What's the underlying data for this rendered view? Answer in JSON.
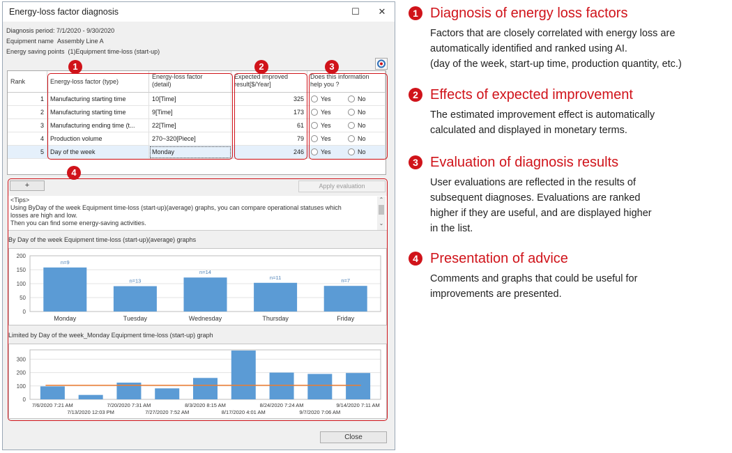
{
  "window": {
    "title": "Energy-loss factor diagnosis",
    "minimize_glyph": "☐",
    "close_glyph": "✕"
  },
  "info": {
    "period": "Diagnosis period: 7/1/2020 - 9/30/2020",
    "equipment": "Equipment name  Assembly Line A",
    "points": "Energy saving points  (1)Equipment time-loss (start-up)"
  },
  "grid": {
    "headers": {
      "rank": "Rank",
      "type": "Energy-loss factor (type)",
      "detail_l1": "Energy-loss factor",
      "detail_l2": "(detail)",
      "improve_l1": "Expected improved",
      "improve_l2": "result[$/Year]",
      "help_l1": "Does this information",
      "help_l2": "help you ?"
    },
    "yes_label": "Yes",
    "no_label": "No",
    "rows": [
      {
        "rank": "1",
        "type": "Manufacturing starting time",
        "detail": "10[Time]",
        "improve": "325"
      },
      {
        "rank": "2",
        "type": "Manufacturing starting time",
        "detail": "9[Time]",
        "improve": "173"
      },
      {
        "rank": "3",
        "type": "Manufacturing ending time (t...",
        "detail": "22[Time]",
        "improve": "61"
      },
      {
        "rank": "4",
        "type": "Production volume",
        "detail": "270~320[Piece]",
        "improve": "79"
      },
      {
        "rank": "5",
        "type": "Day of the week",
        "detail": "Monday",
        "improve": "246"
      }
    ]
  },
  "buttons": {
    "add": "+",
    "apply": "Apply evaluation",
    "close": "Close"
  },
  "tips": {
    "heading": "<Tips>",
    "line1": "Using ByDay of the week Equipment time-loss (start-up)(average) graphs, you can compare operational statuses which",
    "line2": "losses are high and low.",
    "line3": "Then you can find some energy-saving activities."
  },
  "chart1_label": "By Day of the week Equipment time-loss (start-up)(average) graphs",
  "chart2_label": "Limited by Day of the week_Monday  Equipment time-loss (start-up) graph",
  "chart_data": [
    {
      "type": "bar",
      "categories": [
        "Monday",
        "Tuesday",
        "Wednesday",
        "Thursday",
        "Friday"
      ],
      "values": [
        158,
        91,
        122,
        103,
        92
      ],
      "annotations": [
        "n=9",
        "n=13",
        "n=14",
        "n=11",
        "n=7"
      ],
      "yticks": [
        "200",
        "150",
        "100",
        "50",
        "0"
      ],
      "ylim": [
        0,
        200
      ],
      "grid": true,
      "color": "#5b9bd5"
    },
    {
      "type": "bar",
      "categories": [
        "7/6/2020 7:21 AM",
        "7/13/2020 12:03 PM",
        "7/20/2020 7:31 AM",
        "7/27/2020 7:52 AM",
        "8/3/2020 8:15 AM",
        "8/17/2020 4:01 AM",
        "8/24/2020 7:24 AM",
        "9/7/2020 7:06 AM",
        "9/14/2020 7:11 AM"
      ],
      "values": [
        97,
        33,
        125,
        82,
        160,
        365,
        200,
        190,
        197
      ],
      "average_line": 105,
      "yticks": [
        "300",
        "200",
        "100",
        "0"
      ],
      "ylim": [
        0,
        370
      ],
      "grid": true,
      "color": "#5b9bd5",
      "line_color": "#ed7d31"
    }
  ],
  "badges": [
    "1",
    "2",
    "3",
    "4"
  ],
  "right_panel": [
    {
      "num": "1",
      "title": "Diagnosis of energy loss factors",
      "lines": [
        "Factors that are closely correlated with energy loss are",
        "automatically identified and ranked using AI.",
        "(day of the week, start-up time, production quantity, etc.)"
      ]
    },
    {
      "num": "2",
      "title": "Effects of expected improvement",
      "lines": [
        "The estimated improvement effect is automatically",
        "calculated and displayed in monetary terms."
      ]
    },
    {
      "num": "3",
      "title": "Evaluation of diagnosis results",
      "lines": [
        "User evaluations are reflected in the results of",
        "subsequent diagnoses. Evaluations are ranked",
        "higher if they are useful, and are displayed higher",
        "in the list."
      ]
    },
    {
      "num": "4",
      "title": "Presentation of advice",
      "lines": [
        "Comments and graphs that could be useful for",
        "improvements are presented."
      ]
    }
  ],
  "colors": {
    "accent_red": "#d0131a",
    "bar_blue": "#5b9bd5",
    "avg_orange": "#ed7d31"
  },
  "icons": {
    "refresh": "refresh-icon"
  }
}
